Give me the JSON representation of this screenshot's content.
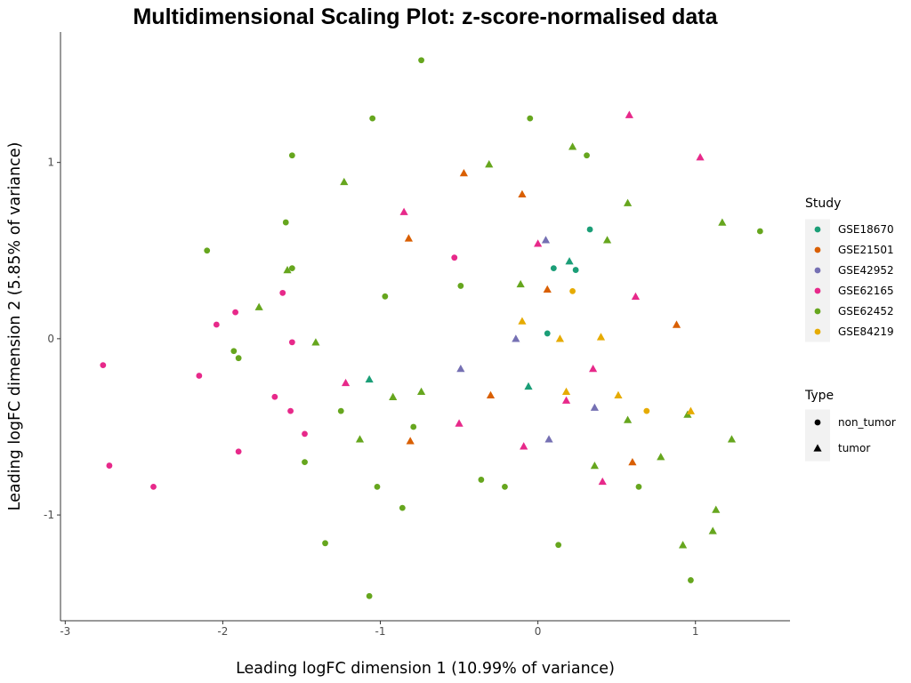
{
  "chart_data": {
    "type": "scatter",
    "title": "Multidimensional Scaling Plot: z-score-normalised data",
    "xlabel": "Leading logFC dimension 1 (10.99% of variance)",
    "ylabel": "Leading logFC dimension 2 (5.85% of variance)",
    "xlim": [
      -3.03,
      1.6
    ],
    "ylim": [
      -1.6,
      1.74
    ],
    "xticks": [
      -3,
      -2,
      -1,
      0,
      1
    ],
    "yticks": [
      -1,
      0,
      1
    ],
    "grid": false,
    "legend_position": "right",
    "color_legend": {
      "title": "Study",
      "entries": [
        {
          "name": "GSE18670",
          "color": "#1b9e77"
        },
        {
          "name": "GSE21501",
          "color": "#d95f02"
        },
        {
          "name": "GSE42952",
          "color": "#7570b3"
        },
        {
          "name": "GSE62165",
          "color": "#e7298a"
        },
        {
          "name": "GSE62452",
          "color": "#66a61e"
        },
        {
          "name": "GSE84219",
          "color": "#e6ab02"
        }
      ]
    },
    "shape_legend": {
      "title": "Type",
      "entries": [
        {
          "name": "non_tumor",
          "shape": "circle"
        },
        {
          "name": "tumor",
          "shape": "triangle"
        }
      ]
    },
    "points": [
      {
        "study": "GSE62165",
        "type": "non_tumor",
        "x": -2.76,
        "y": -0.15
      },
      {
        "study": "GSE62165",
        "type": "non_tumor",
        "x": -2.72,
        "y": -0.72
      },
      {
        "study": "GSE62165",
        "type": "non_tumor",
        "x": -2.44,
        "y": -0.84
      },
      {
        "study": "GSE62165",
        "type": "non_tumor",
        "x": -2.15,
        "y": -0.21
      },
      {
        "study": "GSE62165",
        "type": "non_tumor",
        "x": -2.04,
        "y": 0.08
      },
      {
        "study": "GSE62165",
        "type": "non_tumor",
        "x": -1.92,
        "y": 0.15
      },
      {
        "study": "GSE62165",
        "type": "non_tumor",
        "x": -1.9,
        "y": -0.64
      },
      {
        "study": "GSE62165",
        "type": "non_tumor",
        "x": -1.67,
        "y": -0.33
      },
      {
        "study": "GSE62165",
        "type": "non_tumor",
        "x": -1.62,
        "y": 0.26
      },
      {
        "study": "GSE62165",
        "type": "non_tumor",
        "x": -1.57,
        "y": -0.41
      },
      {
        "study": "GSE62165",
        "type": "non_tumor",
        "x": -1.56,
        "y": -0.02
      },
      {
        "study": "GSE62165",
        "type": "non_tumor",
        "x": -1.48,
        "y": -0.54
      },
      {
        "study": "GSE62165",
        "type": "non_tumor",
        "x": -0.53,
        "y": 0.46
      },
      {
        "study": "GSE62452",
        "type": "non_tumor",
        "x": -2.1,
        "y": 0.5
      },
      {
        "study": "GSE62452",
        "type": "non_tumor",
        "x": -1.93,
        "y": -0.07
      },
      {
        "study": "GSE62452",
        "type": "non_tumor",
        "x": -1.9,
        "y": -0.11
      },
      {
        "study": "GSE62452",
        "type": "non_tumor",
        "x": -1.6,
        "y": 0.66
      },
      {
        "study": "GSE62452",
        "type": "non_tumor",
        "x": -1.56,
        "y": 1.04
      },
      {
        "study": "GSE62452",
        "type": "non_tumor",
        "x": -1.56,
        "y": 0.4
      },
      {
        "study": "GSE62452",
        "type": "non_tumor",
        "x": -1.48,
        "y": -0.7
      },
      {
        "study": "GSE62452",
        "type": "non_tumor",
        "x": -1.35,
        "y": -1.16
      },
      {
        "study": "GSE62452",
        "type": "non_tumor",
        "x": -1.25,
        "y": -0.41
      },
      {
        "study": "GSE62452",
        "type": "non_tumor",
        "x": -1.07,
        "y": -1.46
      },
      {
        "study": "GSE62452",
        "type": "non_tumor",
        "x": -1.05,
        "y": 1.25
      },
      {
        "study": "GSE62452",
        "type": "non_tumor",
        "x": -1.02,
        "y": -0.84
      },
      {
        "study": "GSE62452",
        "type": "non_tumor",
        "x": -0.97,
        "y": 0.24
      },
      {
        "study": "GSE62452",
        "type": "non_tumor",
        "x": -0.86,
        "y": -0.96
      },
      {
        "study": "GSE62452",
        "type": "non_tumor",
        "x": -0.79,
        "y": -0.5
      },
      {
        "study": "GSE62452",
        "type": "non_tumor",
        "x": -0.74,
        "y": 1.58
      },
      {
        "study": "GSE62452",
        "type": "non_tumor",
        "x": -0.49,
        "y": 0.3
      },
      {
        "study": "GSE62452",
        "type": "non_tumor",
        "x": -0.36,
        "y": -0.8
      },
      {
        "study": "GSE62452",
        "type": "non_tumor",
        "x": -0.21,
        "y": -0.84
      },
      {
        "study": "GSE62452",
        "type": "non_tumor",
        "x": -0.05,
        "y": 1.25
      },
      {
        "study": "GSE62452",
        "type": "non_tumor",
        "x": 0.13,
        "y": -1.17
      },
      {
        "study": "GSE62452",
        "type": "non_tumor",
        "x": 0.31,
        "y": 1.04
      },
      {
        "study": "GSE62452",
        "type": "non_tumor",
        "x": 0.64,
        "y": -0.84
      },
      {
        "study": "GSE62452",
        "type": "non_tumor",
        "x": 0.97,
        "y": -1.37
      },
      {
        "study": "GSE62452",
        "type": "non_tumor",
        "x": 1.41,
        "y": 0.61
      },
      {
        "study": "GSE18670",
        "type": "non_tumor",
        "x": 0.1,
        "y": 0.4
      },
      {
        "study": "GSE18670",
        "type": "non_tumor",
        "x": 0.24,
        "y": 0.39
      },
      {
        "study": "GSE18670",
        "type": "non_tumor",
        "x": 0.33,
        "y": 0.62
      },
      {
        "study": "GSE18670",
        "type": "non_tumor",
        "x": 0.06,
        "y": 0.03
      },
      {
        "study": "GSE84219",
        "type": "non_tumor",
        "x": 0.69,
        "y": -0.41
      },
      {
        "study": "GSE84219",
        "type": "non_tumor",
        "x": 0.22,
        "y": 0.27
      },
      {
        "study": "GSE62452",
        "type": "tumor",
        "x": -1.77,
        "y": 0.18
      },
      {
        "study": "GSE62452",
        "type": "tumor",
        "x": -1.59,
        "y": 0.39
      },
      {
        "study": "GSE62452",
        "type": "tumor",
        "x": -1.41,
        "y": -0.02
      },
      {
        "study": "GSE62452",
        "type": "tumor",
        "x": -1.23,
        "y": 0.89
      },
      {
        "study": "GSE62452",
        "type": "tumor",
        "x": -1.13,
        "y": -0.57
      },
      {
        "study": "GSE62452",
        "type": "tumor",
        "x": -0.92,
        "y": -0.33
      },
      {
        "study": "GSE62452",
        "type": "tumor",
        "x": -0.74,
        "y": -0.3
      },
      {
        "study": "GSE62452",
        "type": "tumor",
        "x": -0.31,
        "y": 0.99
      },
      {
        "study": "GSE62452",
        "type": "tumor",
        "x": -0.11,
        "y": 0.31
      },
      {
        "study": "GSE62452",
        "type": "tumor",
        "x": 0.22,
        "y": 1.09
      },
      {
        "study": "GSE62452",
        "type": "tumor",
        "x": 0.44,
        "y": 0.56
      },
      {
        "study": "GSE62452",
        "type": "tumor",
        "x": 0.57,
        "y": 0.77
      },
      {
        "study": "GSE62452",
        "type": "tumor",
        "x": 0.78,
        "y": -0.67
      },
      {
        "study": "GSE62452",
        "type": "tumor",
        "x": 0.92,
        "y": -1.17
      },
      {
        "study": "GSE62452",
        "type": "tumor",
        "x": 1.13,
        "y": -0.97
      },
      {
        "study": "GSE62452",
        "type": "tumor",
        "x": 1.17,
        "y": 0.66
      },
      {
        "study": "GSE62452",
        "type": "tumor",
        "x": 1.23,
        "y": -0.57
      },
      {
        "study": "GSE62452",
        "type": "tumor",
        "x": 0.95,
        "y": -0.43
      },
      {
        "study": "GSE62452",
        "type": "tumor",
        "x": 1.11,
        "y": -1.09
      },
      {
        "study": "GSE62452",
        "type": "tumor",
        "x": 0.36,
        "y": -0.72
      },
      {
        "study": "GSE62452",
        "type": "tumor",
        "x": 0.57,
        "y": -0.46
      },
      {
        "study": "GSE62165",
        "type": "tumor",
        "x": -1.22,
        "y": -0.25
      },
      {
        "study": "GSE62165",
        "type": "tumor",
        "x": -0.85,
        "y": 0.72
      },
      {
        "study": "GSE62165",
        "type": "tumor",
        "x": -0.5,
        "y": -0.48
      },
      {
        "study": "GSE62165",
        "type": "tumor",
        "x": 0.58,
        "y": 1.27
      },
      {
        "study": "GSE62165",
        "type": "tumor",
        "x": 1.03,
        "y": 1.03
      },
      {
        "study": "GSE62165",
        "type": "tumor",
        "x": 0.0,
        "y": 0.54
      },
      {
        "study": "GSE62165",
        "type": "tumor",
        "x": 0.35,
        "y": -0.17
      },
      {
        "study": "GSE62165",
        "type": "tumor",
        "x": 0.18,
        "y": -0.35
      },
      {
        "study": "GSE62165",
        "type": "tumor",
        "x": 0.41,
        "y": -0.81
      },
      {
        "study": "GSE62165",
        "type": "tumor",
        "x": -0.09,
        "y": -0.61
      },
      {
        "study": "GSE62165",
        "type": "tumor",
        "x": 0.62,
        "y": 0.24
      },
      {
        "study": "GSE21501",
        "type": "tumor",
        "x": -0.82,
        "y": 0.57
      },
      {
        "study": "GSE21501",
        "type": "tumor",
        "x": -0.81,
        "y": -0.58
      },
      {
        "study": "GSE21501",
        "type": "tumor",
        "x": -0.47,
        "y": 0.94
      },
      {
        "study": "GSE21501",
        "type": "tumor",
        "x": -0.1,
        "y": 0.82
      },
      {
        "study": "GSE21501",
        "type": "tumor",
        "x": 0.06,
        "y": 0.28
      },
      {
        "study": "GSE21501",
        "type": "tumor",
        "x": 0.6,
        "y": -0.7
      },
      {
        "study": "GSE21501",
        "type": "tumor",
        "x": 0.88,
        "y": 0.08
      },
      {
        "study": "GSE21501",
        "type": "tumor",
        "x": -0.3,
        "y": -0.32
      },
      {
        "study": "GSE42952",
        "type": "tumor",
        "x": -0.49,
        "y": -0.17
      },
      {
        "study": "GSE42952",
        "type": "tumor",
        "x": 0.07,
        "y": -0.57
      },
      {
        "study": "GSE42952",
        "type": "tumor",
        "x": 0.36,
        "y": -0.39
      },
      {
        "study": "GSE42952",
        "type": "tumor",
        "x": 0.05,
        "y": 0.56
      },
      {
        "study": "GSE42952",
        "type": "tumor",
        "x": -0.14,
        "y": 0.0
      },
      {
        "study": "GSE18670",
        "type": "tumor",
        "x": -1.07,
        "y": -0.23
      },
      {
        "study": "GSE18670",
        "type": "tumor",
        "x": -0.06,
        "y": -0.27
      },
      {
        "study": "GSE18670",
        "type": "tumor",
        "x": 0.2,
        "y": 0.44
      },
      {
        "study": "GSE84219",
        "type": "tumor",
        "x": 0.97,
        "y": -0.41
      },
      {
        "study": "GSE84219",
        "type": "tumor",
        "x": 0.14,
        "y": 0.0
      },
      {
        "study": "GSE84219",
        "type": "tumor",
        "x": 0.4,
        "y": 0.01
      },
      {
        "study": "GSE84219",
        "type": "tumor",
        "x": 0.18,
        "y": -0.3
      },
      {
        "study": "GSE84219",
        "type": "tumor",
        "x": 0.51,
        "y": -0.32
      },
      {
        "study": "GSE84219",
        "type": "tumor",
        "x": -0.1,
        "y": 0.1
      }
    ]
  }
}
